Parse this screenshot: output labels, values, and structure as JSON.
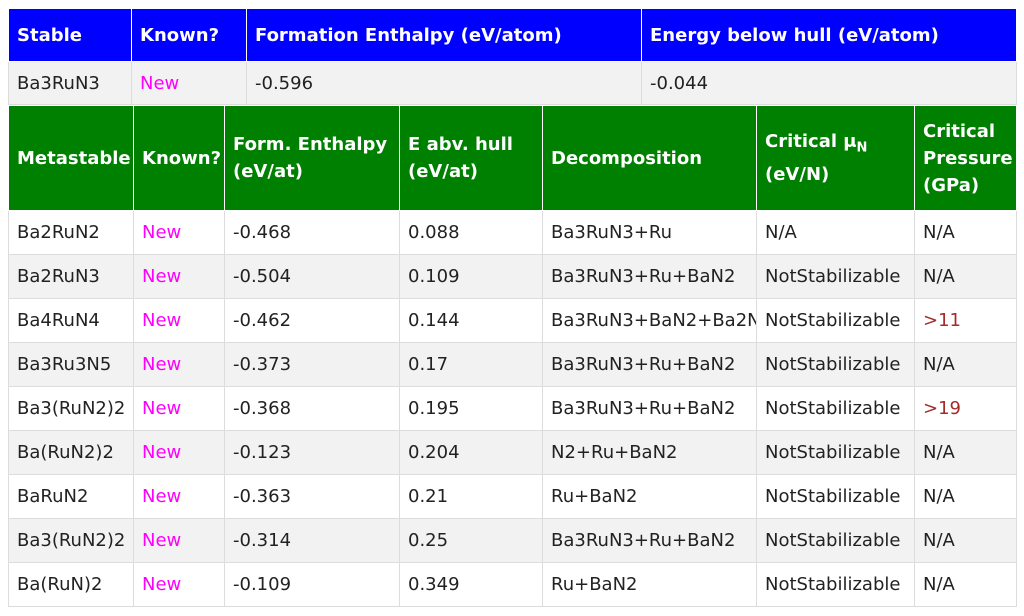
{
  "stable_table": {
    "headers": [
      "Stable",
      "Known?",
      "Formation Enthalpy (eV/atom)",
      "Energy below hull (eV/atom)"
    ],
    "row": {
      "compound": "Ba3RuN3",
      "known": "New",
      "formation_enthalpy": "-0.596",
      "energy_below_hull": "-0.044"
    }
  },
  "metastable_table": {
    "headers": {
      "metastable": "Metastable",
      "known": "Known?",
      "form_enthalpy": "Form. Enthalpy (eV/at)",
      "e_abv_hull": "E abv. hull (eV/at)",
      "decomposition": "Decomposition",
      "critical_mu_main": "Critical μ",
      "critical_mu_sub": "N",
      "critical_mu_unit": "(eV/N)",
      "critical_pressure": "Critical Pressure (GPa)"
    },
    "rows": [
      {
        "compound": "Ba2RuN2",
        "known": "New",
        "form_enthalpy": "-0.468",
        "e_abv_hull": "0.088",
        "decomposition": "Ba3RuN3+Ru",
        "critical_mu": "N/A",
        "critical_pressure": "N/A"
      },
      {
        "compound": "Ba2RuN3",
        "known": "New",
        "form_enthalpy": "-0.504",
        "e_abv_hull": "0.109",
        "decomposition": "Ba3RuN3+Ru+BaN2",
        "critical_mu": "NotStabilizable",
        "critical_pressure": "N/A"
      },
      {
        "compound": "Ba4RuN4",
        "known": "New",
        "form_enthalpy": "-0.462",
        "e_abv_hull": "0.144",
        "decomposition": "Ba3RuN3+BaN2+Ba2N",
        "critical_mu": "NotStabilizable",
        "critical_pressure": ">11"
      },
      {
        "compound": "Ba3Ru3N5",
        "known": "New",
        "form_enthalpy": "-0.373",
        "e_abv_hull": "0.17",
        "decomposition": "Ba3RuN3+Ru+BaN2",
        "critical_mu": "NotStabilizable",
        "critical_pressure": "N/A"
      },
      {
        "compound": "Ba3(RuN2)2",
        "known": "New",
        "form_enthalpy": "-0.368",
        "e_abv_hull": "0.195",
        "decomposition": "Ba3RuN3+Ru+BaN2",
        "critical_mu": "NotStabilizable",
        "critical_pressure": ">19"
      },
      {
        "compound": "Ba(RuN2)2",
        "known": "New",
        "form_enthalpy": "-0.123",
        "e_abv_hull": "0.204",
        "decomposition": "N2+Ru+BaN2",
        "critical_mu": "NotStabilizable",
        "critical_pressure": "N/A"
      },
      {
        "compound": "BaRuN2",
        "known": "New",
        "form_enthalpy": "-0.363",
        "e_abv_hull": "0.21",
        "decomposition": "Ru+BaN2",
        "critical_mu": "NotStabilizable",
        "critical_pressure": "N/A"
      },
      {
        "compound": "Ba3(RuN2)2",
        "known": "New",
        "form_enthalpy": "-0.314",
        "e_abv_hull": "0.25",
        "decomposition": "Ba3RuN3+Ru+BaN2",
        "critical_mu": "NotStabilizable",
        "critical_pressure": "N/A"
      },
      {
        "compound": "Ba(RuN)2",
        "known": "New",
        "form_enthalpy": "-0.109",
        "e_abv_hull": "0.349",
        "decomposition": "Ru+BaN2",
        "critical_mu": "NotStabilizable",
        "critical_pressure": "N/A"
      }
    ]
  },
  "colors": {
    "stable_header_bg": "#0000ff",
    "metastable_header_bg": "#008000",
    "new_text": "#ff00ff",
    "pressure_value_text": "#a52a2a",
    "row_alt_bg": "#f2f2f2"
  }
}
